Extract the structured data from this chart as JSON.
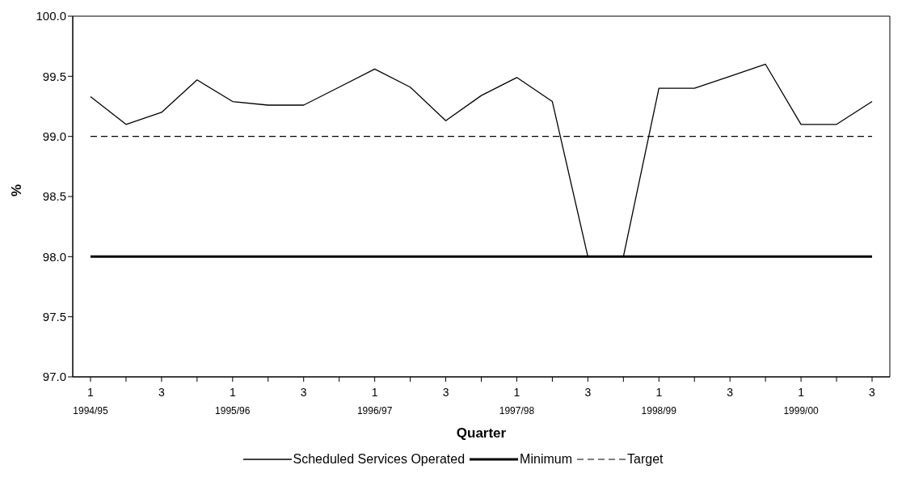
{
  "chart_data": {
    "type": "line",
    "xlabel": "Quarter",
    "ylabel": "%",
    "categories": [
      "1\n1994/95",
      null,
      "3",
      null,
      "1\n1995/96",
      null,
      "3",
      null,
      "1\n1996/97",
      null,
      "3",
      null,
      "1\n1997/98",
      null,
      "3",
      null,
      "1\n1998/99",
      null,
      "3",
      null,
      "1\n1999/00",
      null,
      "3"
    ],
    "series": [
      {
        "name": "Scheduled Services Operated",
        "color": "#000000",
        "line_style": "solid",
        "values": [
          99.33,
          99.1,
          99.2,
          99.47,
          99.29,
          99.26,
          99.26,
          99.41,
          99.56,
          99.41,
          99.13,
          99.34,
          99.49,
          99.29,
          98.0,
          98.0,
          99.4,
          99.4,
          99.5,
          99.6,
          99.1,
          99.1,
          99.29
        ]
      },
      {
        "name": "Minimum",
        "color": "#000000",
        "line_style": "solid",
        "values": [
          98,
          98,
          98,
          98,
          98,
          98,
          98,
          98,
          98,
          98,
          98,
          98,
          98,
          98,
          98,
          98,
          98,
          98,
          98,
          98,
          98,
          98,
          98
        ]
      },
      {
        "name": "Target",
        "color": "#000000",
        "line_style": "dashed",
        "values": [
          99,
          99,
          99,
          99,
          99,
          99,
          99,
          99,
          99,
          99,
          99,
          99,
          99,
          99,
          99,
          99,
          99,
          99,
          99,
          99,
          99,
          99,
          99
        ]
      }
    ],
    "ylim": [
      97.0,
      100.0
    ],
    "yticks": [
      {
        "value": 97,
        "label": "97.0"
      },
      {
        "value": 97.5,
        "label": "97.5"
      },
      {
        "value": 98,
        "label": "98.0"
      },
      {
        "value": 98.5,
        "label": "98.5"
      },
      {
        "value": 99,
        "label": "99.0"
      },
      {
        "value": 99.5,
        "label": "99.5"
      },
      {
        "value": 100,
        "label": "100.0"
      }
    ],
    "legend": "bottom",
    "marker": "none"
  }
}
